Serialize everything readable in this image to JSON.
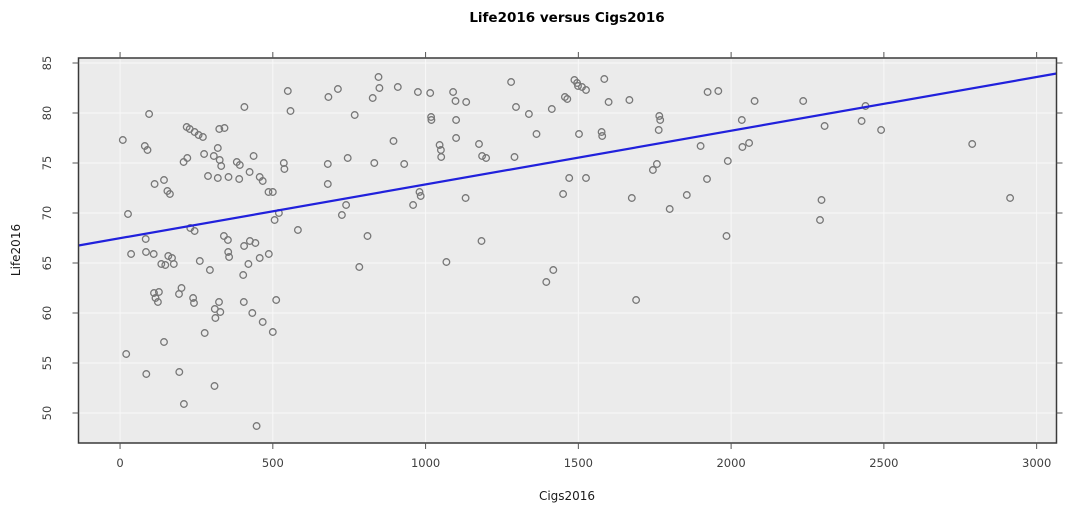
{
  "chart_data": {
    "type": "scatter",
    "title": "Life2016 versus Cigs2016",
    "xlabel": "Cigs2016",
    "ylabel": "Life2016",
    "xlim": [
      -136,
      3065
    ],
    "ylim": [
      47.0,
      85.5
    ],
    "x_ticks": [
      0,
      500,
      1000,
      1500,
      2000,
      2500,
      3000
    ],
    "y_ticks": [
      50,
      55,
      60,
      65,
      70,
      75,
      80,
      85
    ],
    "grid": true,
    "legend": "none",
    "colors": {
      "panel_bg": "#EBEBEB",
      "grid": "#F8F8F8",
      "point_stroke": "#777777",
      "regression_line": "#2121DC",
      "panel_border": "#3A3A3A",
      "tick": "#555555"
    },
    "regression_line": {
      "x1": -136,
      "y1": 66.75,
      "x2": 3065,
      "y2": 83.95
    },
    "points": [
      [
        9,
        77.3
      ],
      [
        95,
        79.9
      ],
      [
        81,
        76.7
      ],
      [
        90,
        76.3
      ],
      [
        218,
        78.6
      ],
      [
        228,
        78.4
      ],
      [
        244,
        78.1
      ],
      [
        257,
        77.8
      ],
      [
        271,
        77.6
      ],
      [
        325,
        78.4
      ],
      [
        342,
        78.5
      ],
      [
        275,
        75.9
      ],
      [
        220,
        75.5
      ],
      [
        208,
        75.1
      ],
      [
        320,
        76.5
      ],
      [
        307,
        75.7
      ],
      [
        326,
        75.3
      ],
      [
        331,
        74.7
      ],
      [
        382,
        75.1
      ],
      [
        392,
        74.8
      ],
      [
        288,
        73.7
      ],
      [
        320,
        73.5
      ],
      [
        355,
        73.6
      ],
      [
        390,
        73.4
      ],
      [
        113,
        72.9
      ],
      [
        144,
        73.3
      ],
      [
        155,
        72.2
      ],
      [
        163,
        71.9
      ],
      [
        26,
        69.9
      ],
      [
        84,
        67.4
      ],
      [
        230,
        68.5
      ],
      [
        244,
        68.2
      ],
      [
        340,
        67.7
      ],
      [
        353,
        67.3
      ],
      [
        406,
        66.7
      ],
      [
        407,
        80.6
      ],
      [
        549,
        82.2
      ],
      [
        558,
        80.2
      ],
      [
        682,
        81.6
      ],
      [
        713,
        82.4
      ],
      [
        846,
        83.6
      ],
      [
        849,
        82.5
      ],
      [
        827,
        81.5
      ],
      [
        909,
        82.6
      ],
      [
        768,
        79.8
      ],
      [
        895,
        77.2
      ],
      [
        437,
        75.7
      ],
      [
        424,
        74.1
      ],
      [
        536,
        75.0
      ],
      [
        538,
        74.4
      ],
      [
        457,
        73.6
      ],
      [
        467,
        73.2
      ],
      [
        680,
        74.9
      ],
      [
        745,
        75.5
      ],
      [
        832,
        75.0
      ],
      [
        930,
        74.9
      ],
      [
        486,
        72.1
      ],
      [
        500,
        72.1
      ],
      [
        520,
        70.0
      ],
      [
        506,
        69.3
      ],
      [
        582,
        68.3
      ],
      [
        740,
        70.8
      ],
      [
        726,
        69.8
      ],
      [
        810,
        67.7
      ],
      [
        443,
        67.0
      ],
      [
        425,
        67.2
      ],
      [
        680,
        72.9
      ],
      [
        36,
        65.9
      ],
      [
        85,
        66.1
      ],
      [
        110,
        65.9
      ],
      [
        135,
        64.9
      ],
      [
        148,
        64.8
      ],
      [
        176,
        64.9
      ],
      [
        158,
        65.7
      ],
      [
        170,
        65.5
      ],
      [
        261,
        65.2
      ],
      [
        294,
        64.3
      ],
      [
        354,
        66.1
      ],
      [
        357,
        65.6
      ],
      [
        403,
        63.8
      ],
      [
        420,
        64.9
      ],
      [
        487,
        65.9
      ],
      [
        457,
        65.5
      ],
      [
        783,
        64.6
      ],
      [
        201,
        62.5
      ],
      [
        193,
        61.9
      ],
      [
        111,
        62.0
      ],
      [
        127,
        62.1
      ],
      [
        116,
        61.5
      ],
      [
        124,
        61.1
      ],
      [
        239,
        61.5
      ],
      [
        242,
        61.0
      ],
      [
        324,
        61.1
      ],
      [
        310,
        60.4
      ],
      [
        328,
        60.1
      ],
      [
        312,
        59.5
      ],
      [
        405,
        61.1
      ],
      [
        433,
        60.0
      ],
      [
        467,
        59.1
      ],
      [
        511,
        61.3
      ],
      [
        500,
        58.1
      ],
      [
        277,
        58.0
      ],
      [
        144,
        57.1
      ],
      [
        20,
        55.9
      ],
      [
        86,
        53.9
      ],
      [
        194,
        54.1
      ],
      [
        309,
        52.7
      ],
      [
        209,
        50.9
      ],
      [
        447,
        48.7
      ],
      [
        975,
        82.1
      ],
      [
        1015,
        82.0
      ],
      [
        1090,
        82.1
      ],
      [
        1098,
        81.2
      ],
      [
        1133,
        81.1
      ],
      [
        1018,
        79.6
      ],
      [
        1019,
        79.3
      ],
      [
        1100,
        79.3
      ],
      [
        1100,
        77.5
      ],
      [
        1046,
        76.8
      ],
      [
        1050,
        76.3
      ],
      [
        1051,
        75.6
      ],
      [
        1175,
        76.9
      ],
      [
        1185,
        75.7
      ],
      [
        1198,
        75.5
      ],
      [
        1291,
        75.6
      ],
      [
        1280,
        83.1
      ],
      [
        1296,
        80.6
      ],
      [
        1338,
        79.9
      ],
      [
        1363,
        77.9
      ],
      [
        1413,
        80.4
      ],
      [
        1456,
        81.6
      ],
      [
        1464,
        81.4
      ],
      [
        1487,
        83.3
      ],
      [
        1496,
        83.0
      ],
      [
        1499,
        82.7
      ],
      [
        1512,
        82.6
      ],
      [
        1525,
        82.3
      ],
      [
        1585,
        83.4
      ],
      [
        1599,
        81.1
      ],
      [
        1667,
        81.3
      ],
      [
        1502,
        77.9
      ],
      [
        1576,
        78.1
      ],
      [
        1578,
        77.7
      ],
      [
        1765,
        79.7
      ],
      [
        1768,
        79.3
      ],
      [
        1763,
        78.3
      ],
      [
        1744,
        74.3
      ],
      [
        1757,
        74.9
      ],
      [
        1900,
        76.7
      ],
      [
        1923,
        82.1
      ],
      [
        1958,
        82.2
      ],
      [
        1989,
        75.2
      ],
      [
        1470,
        73.5
      ],
      [
        1525,
        73.5
      ],
      [
        1450,
        71.9
      ],
      [
        1675,
        71.5
      ],
      [
        1799,
        70.4
      ],
      [
        1855,
        71.8
      ],
      [
        1921,
        73.4
      ],
      [
        1985,
        67.7
      ],
      [
        1183,
        67.2
      ],
      [
        980,
        72.1
      ],
      [
        984,
        71.7
      ],
      [
        959,
        70.8
      ],
      [
        1131,
        71.5
      ],
      [
        1068,
        65.1
      ],
      [
        1418,
        64.3
      ],
      [
        1395,
        63.1
      ],
      [
        1689,
        61.3
      ],
      [
        2077,
        81.2
      ],
      [
        2236,
        81.2
      ],
      [
        2035,
        79.3
      ],
      [
        2306,
        78.7
      ],
      [
        2427,
        79.2
      ],
      [
        2440,
        80.7
      ],
      [
        2491,
        78.3
      ],
      [
        2037,
        76.6
      ],
      [
        2059,
        77.0
      ],
      [
        2789,
        76.9
      ],
      [
        2296,
        71.3
      ],
      [
        2913,
        71.5
      ],
      [
        2291,
        69.3
      ]
    ]
  }
}
